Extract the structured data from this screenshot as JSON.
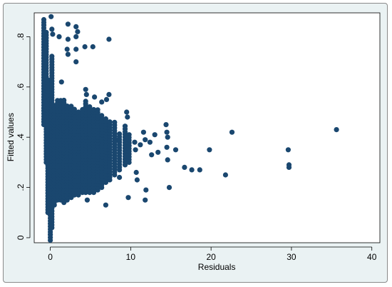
{
  "chart_data": {
    "type": "scatter",
    "xlabel": "Residuals",
    "ylabel": "Fitted values",
    "xlim": [
      -2,
      41
    ],
    "ylim": [
      -0.02,
      0.895
    ],
    "xticks": [
      0,
      10,
      20,
      30,
      40
    ],
    "xtick_labels": [
      "0",
      "10",
      "20",
      "30",
      "40"
    ],
    "yticks": [
      0,
      0.2,
      0.4,
      0.6,
      0.8
    ],
    "ytick_labels": [
      "0",
      ".2",
      ".4",
      ".6",
      ".8"
    ],
    "grid": false,
    "legend": "none",
    "marker_color": "#1a476f",
    "points_note": "dense vertical bands omitted as ranges",
    "columns": [
      {
        "x": -0.8,
        "y_min": 0.45,
        "y_max": 0.87
      },
      {
        "x": -0.5,
        "y_min": 0.3,
        "y_max": 0.82
      },
      {
        "x": -0.3,
        "y_min": 0.1,
        "y_max": 0.63
      },
      {
        "x": 0.0,
        "y_min": -0.01,
        "y_max": 0.56
      },
      {
        "x": 0.2,
        "y_min": 0.04,
        "y_max": 0.73
      },
      {
        "x": 0.5,
        "y_min": 0.13,
        "y_max": 0.53
      },
      {
        "x": 0.9,
        "y_min": 0.15,
        "y_max": 0.55
      },
      {
        "x": 1.3,
        "y_min": 0.15,
        "y_max": 0.55
      },
      {
        "x": 1.7,
        "y_min": 0.14,
        "y_max": 0.55
      },
      {
        "x": 2.1,
        "y_min": 0.15,
        "y_max": 0.53
      },
      {
        "x": 2.6,
        "y_min": 0.16,
        "y_max": 0.53
      },
      {
        "x": 3.0,
        "y_min": 0.17,
        "y_max": 0.52
      },
      {
        "x": 3.5,
        "y_min": 0.17,
        "y_max": 0.51
      },
      {
        "x": 4.0,
        "y_min": 0.18,
        "y_max": 0.52
      },
      {
        "x": 4.4,
        "y_min": 0.18,
        "y_max": 0.55
      },
      {
        "x": 4.9,
        "y_min": 0.18,
        "y_max": 0.53
      },
      {
        "x": 5.4,
        "y_min": 0.18,
        "y_max": 0.51
      },
      {
        "x": 5.9,
        "y_min": 0.19,
        "y_max": 0.51
      },
      {
        "x": 6.4,
        "y_min": 0.2,
        "y_max": 0.49
      },
      {
        "x": 6.9,
        "y_min": 0.22,
        "y_max": 0.48
      },
      {
        "x": 7.4,
        "y_min": 0.23,
        "y_max": 0.47
      },
      {
        "x": 8.0,
        "y_min": 0.25,
        "y_max": 0.46
      },
      {
        "x": 8.6,
        "y_min": 0.27,
        "y_max": 0.42
      },
      {
        "x": 9.3,
        "y_min": 0.29,
        "y_max": 0.45
      },
      {
        "x": 9.8,
        "y_min": 0.3,
        "y_max": 0.42
      }
    ],
    "points": [
      {
        "x": 0.1,
        "y": 0.88
      },
      {
        "x": 0.2,
        "y": 0.83
      },
      {
        "x": 0.3,
        "y": 0.81
      },
      {
        "x": 1.1,
        "y": 0.8
      },
      {
        "x": 2.2,
        "y": 0.85
      },
      {
        "x": 3.2,
        "y": 0.84
      },
      {
        "x": 2.2,
        "y": 0.79
      },
      {
        "x": 3.2,
        "y": 0.8
      },
      {
        "x": 3.4,
        "y": 0.82
      },
      {
        "x": 2.1,
        "y": 0.75
      },
      {
        "x": 2.2,
        "y": 0.73
      },
      {
        "x": 3.2,
        "y": 0.75
      },
      {
        "x": 3.2,
        "y": 0.7
      },
      {
        "x": 4.3,
        "y": 0.76
      },
      {
        "x": 5.3,
        "y": 0.76
      },
      {
        "x": 7.3,
        "y": 0.79
      },
      {
        "x": 1.4,
        "y": 0.62
      },
      {
        "x": 4.4,
        "y": 0.59
      },
      {
        "x": 4.5,
        "y": 0.57
      },
      {
        "x": 7.3,
        "y": 0.57
      },
      {
        "x": 6.4,
        "y": 0.54
      },
      {
        "x": 5.5,
        "y": 0.56
      },
      {
        "x": 7.0,
        "y": 0.55
      },
      {
        "x": 6.9,
        "y": 0.13
      },
      {
        "x": 4.6,
        "y": 0.15
      },
      {
        "x": 8.1,
        "y": 0.39
      },
      {
        "x": 8.6,
        "y": 0.24
      },
      {
        "x": 9.5,
        "y": 0.5
      },
      {
        "x": 9.6,
        "y": 0.48
      },
      {
        "x": 9.5,
        "y": 0.4
      },
      {
        "x": 9.7,
        "y": 0.16
      },
      {
        "x": 10.5,
        "y": 0.38
      },
      {
        "x": 10.6,
        "y": 0.35
      },
      {
        "x": 10.7,
        "y": 0.26
      },
      {
        "x": 10.8,
        "y": 0.23
      },
      {
        "x": 11.2,
        "y": 0.37
      },
      {
        "x": 11.6,
        "y": 0.42
      },
      {
        "x": 11.8,
        "y": 0.39
      },
      {
        "x": 11.9,
        "y": 0.19
      },
      {
        "x": 11.8,
        "y": 0.15
      },
      {
        "x": 12.4,
        "y": 0.38
      },
      {
        "x": 12.6,
        "y": 0.33
      },
      {
        "x": 13.0,
        "y": 0.41
      },
      {
        "x": 13.4,
        "y": 0.34
      },
      {
        "x": 14.4,
        "y": 0.45
      },
      {
        "x": 14.5,
        "y": 0.42
      },
      {
        "x": 14.6,
        "y": 0.4
      },
      {
        "x": 14.5,
        "y": 0.36
      },
      {
        "x": 14.6,
        "y": 0.31
      },
      {
        "x": 14.8,
        "y": 0.2
      },
      {
        "x": 15.6,
        "y": 0.35
      },
      {
        "x": 16.7,
        "y": 0.28
      },
      {
        "x": 17.6,
        "y": 0.27
      },
      {
        "x": 18.6,
        "y": 0.27
      },
      {
        "x": 19.8,
        "y": 0.35
      },
      {
        "x": 21.8,
        "y": 0.25
      },
      {
        "x": 22.6,
        "y": 0.42
      },
      {
        "x": 29.6,
        "y": 0.35
      },
      {
        "x": 29.7,
        "y": 0.29
      },
      {
        "x": 29.7,
        "y": 0.28
      },
      {
        "x": 35.6,
        "y": 0.43
      }
    ]
  }
}
